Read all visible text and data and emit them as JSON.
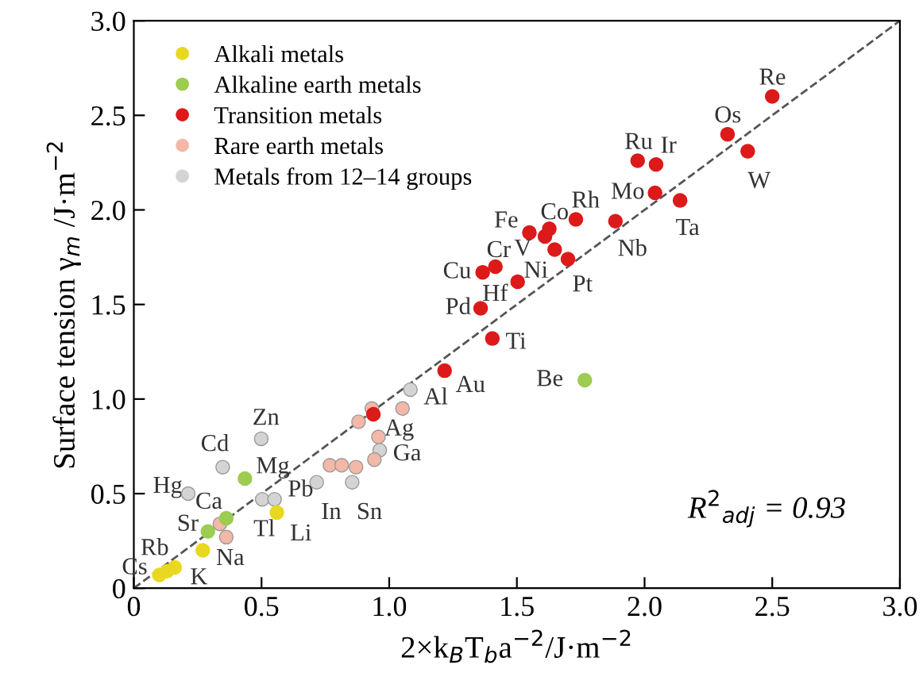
{
  "chart_data": {
    "type": "scatter",
    "xlabel": "2×k$_{B}$T$_{b}$a$^{−2}$/J·m$^{−2}$",
    "ylabel": "Surface tension γ$_{m}$ /J·m$^{−2}$",
    "xlim": [
      0,
      3
    ],
    "ylim": [
      0,
      3
    ],
    "xticks": [
      0,
      {
        "value": 0.5,
        "label": "0.5"
      },
      {
        "value": 1,
        "label": "1.0"
      },
      {
        "value": 1.5,
        "label": "1.5"
      },
      {
        "value": 2,
        "label": "2.0"
      },
      {
        "value": 2.5,
        "label": "2.5"
      },
      {
        "value": 3,
        "label": "3.0"
      }
    ],
    "yticks": [
      0,
      {
        "value": 0.5,
        "label": "0.5"
      },
      {
        "value": 1,
        "label": "1.0"
      },
      {
        "value": 1.5,
        "label": "1.5"
      },
      {
        "value": 2,
        "label": "2.0"
      },
      {
        "value": 2.5,
        "label": "2.5"
      },
      {
        "value": 3,
        "label": "3.0"
      }
    ],
    "grid": false,
    "legend": "top left",
    "marker": "circle",
    "series": [
      {
        "name": "Alkali metals",
        "color": "#e8d820",
        "x": [
          0.1,
          0.13,
          0.16,
          0.27,
          0.56
        ],
        "values": [
          0.07,
          0.09,
          0.11,
          0.2,
          0.4
        ]
      },
      {
        "name": "Alkaline earth metals",
        "color": "#9ccc50",
        "x": [
          0.435,
          0.362,
          0.29,
          1.766
        ],
        "values": [
          0.58,
          0.37,
          0.3,
          1.1
        ]
      },
      {
        "name": "Transition metals",
        "color": "#dd1a1a",
        "x": [
          0.938,
          1.217,
          1.404,
          1.358,
          1.366,
          1.416,
          1.503,
          1.648,
          1.61,
          1.549,
          1.627,
          1.7,
          1.731,
          1.886,
          2.041,
          2.139,
          1.973,
          2.045,
          2.325,
          2.404,
          2.5
        ],
        "values": [
          0.92,
          1.15,
          1.32,
          1.48,
          1.67,
          1.7,
          1.62,
          1.79,
          1.86,
          1.88,
          1.9,
          1.74,
          1.95,
          1.94,
          2.09,
          2.05,
          2.26,
          2.24,
          2.4,
          2.31,
          2.6
        ]
      },
      {
        "name": "Rare earth metals",
        "color": "#f4b8a8",
        "x": [
          0.932,
          0.88,
          1.052,
          0.958,
          0.942,
          0.768,
          0.814,
          0.87,
          0.337,
          0.362
        ],
        "values": [
          0.95,
          0.88,
          0.95,
          0.8,
          0.68,
          0.65,
          0.65,
          0.64,
          0.34,
          0.27
        ]
      },
      {
        "name": "Metals from 12–14 groups",
        "color": "#d4d4d4",
        "x": [
          1.083,
          0.963,
          0.499,
          0.348,
          0.213,
          0.503,
          0.551,
          0.716,
          0.855
        ],
        "values": [
          1.05,
          0.73,
          0.79,
          0.64,
          0.5,
          0.47,
          0.47,
          0.56,
          0.56
        ]
      },
      {
        "type": "line",
        "color": "#555555",
        "line_style": "dashed",
        "marker": "none",
        "x": [
          0,
          3
        ],
        "values": [
          0,
          3
        ]
      }
    ],
    "annotations": [
      {
        "text": "Cs",
        "x": 0.1,
        "y": 0.07
      },
      {
        "text": "Rb",
        "x": 0.13,
        "y": 0.09
      },
      {
        "text": "K",
        "x": 0.16,
        "y": 0.11
      },
      {
        "text": "Na",
        "x": 0.27,
        "y": 0.2
      },
      {
        "text": "Li",
        "x": 0.56,
        "y": 0.4
      },
      {
        "text": "Mg",
        "x": 0.435,
        "y": 0.58
      },
      {
        "text": "Ca",
        "x": 0.362,
        "y": 0.37
      },
      {
        "text": "Sr",
        "x": 0.29,
        "y": 0.3
      },
      {
        "text": "Be",
        "x": 1.766,
        "y": 1.1
      },
      {
        "text": "Zn",
        "x": 0.499,
        "y": 0.79
      },
      {
        "text": "Cd",
        "x": 0.348,
        "y": 0.64
      },
      {
        "text": "Hg",
        "x": 0.213,
        "y": 0.5
      },
      {
        "text": "Tl",
        "x": 0.503,
        "y": 0.47
      },
      {
        "text": "Pb",
        "x": 0.551,
        "y": 0.47
      },
      {
        "text": "In",
        "x": 0.716,
        "y": 0.56
      },
      {
        "text": "Sn",
        "x": 0.855,
        "y": 0.56
      },
      {
        "text": "Al",
        "x": 1.083,
        "y": 1.05
      },
      {
        "text": "Ga",
        "x": 0.963,
        "y": 0.73
      },
      {
        "text": "Ag",
        "x": 0.938,
        "y": 0.92
      },
      {
        "text": "Au",
        "x": 1.217,
        "y": 1.15
      },
      {
        "text": "Ti",
        "x": 1.404,
        "y": 1.32
      },
      {
        "text": "Pd",
        "x": 1.358,
        "y": 1.48
      },
      {
        "text": "Cu",
        "x": 1.366,
        "y": 1.67
      },
      {
        "text": "Cr",
        "x": 1.416,
        "y": 1.7
      },
      {
        "text": "Hf",
        "x": 1.503,
        "y": 1.62
      },
      {
        "text": "Ni",
        "x": 1.648,
        "y": 1.79
      },
      {
        "text": "V",
        "x": 1.61,
        "y": 1.86
      },
      {
        "text": "Fe",
        "x": 1.549,
        "y": 1.88
      },
      {
        "text": "Co",
        "x": 1.627,
        "y": 1.9
      },
      {
        "text": "Pt",
        "x": 1.7,
        "y": 1.74
      },
      {
        "text": "Rh",
        "x": 1.731,
        "y": 1.95
      },
      {
        "text": "Nb",
        "x": 1.886,
        "y": 1.94
      },
      {
        "text": "Mo",
        "x": 2.041,
        "y": 2.09
      },
      {
        "text": "Ta",
        "x": 2.139,
        "y": 2.05
      },
      {
        "text": "Ru",
        "x": 1.973,
        "y": 2.26
      },
      {
        "text": "Ir",
        "x": 2.045,
        "y": 2.24
      },
      {
        "text": "Os",
        "x": 2.325,
        "y": 2.4
      },
      {
        "text": "W",
        "x": 2.404,
        "y": 2.31
      },
      {
        "text": "Re",
        "x": 2.5,
        "y": 2.6
      },
      "R$^{2}$$_{adj}$ = 0.93"
    ]
  }
}
